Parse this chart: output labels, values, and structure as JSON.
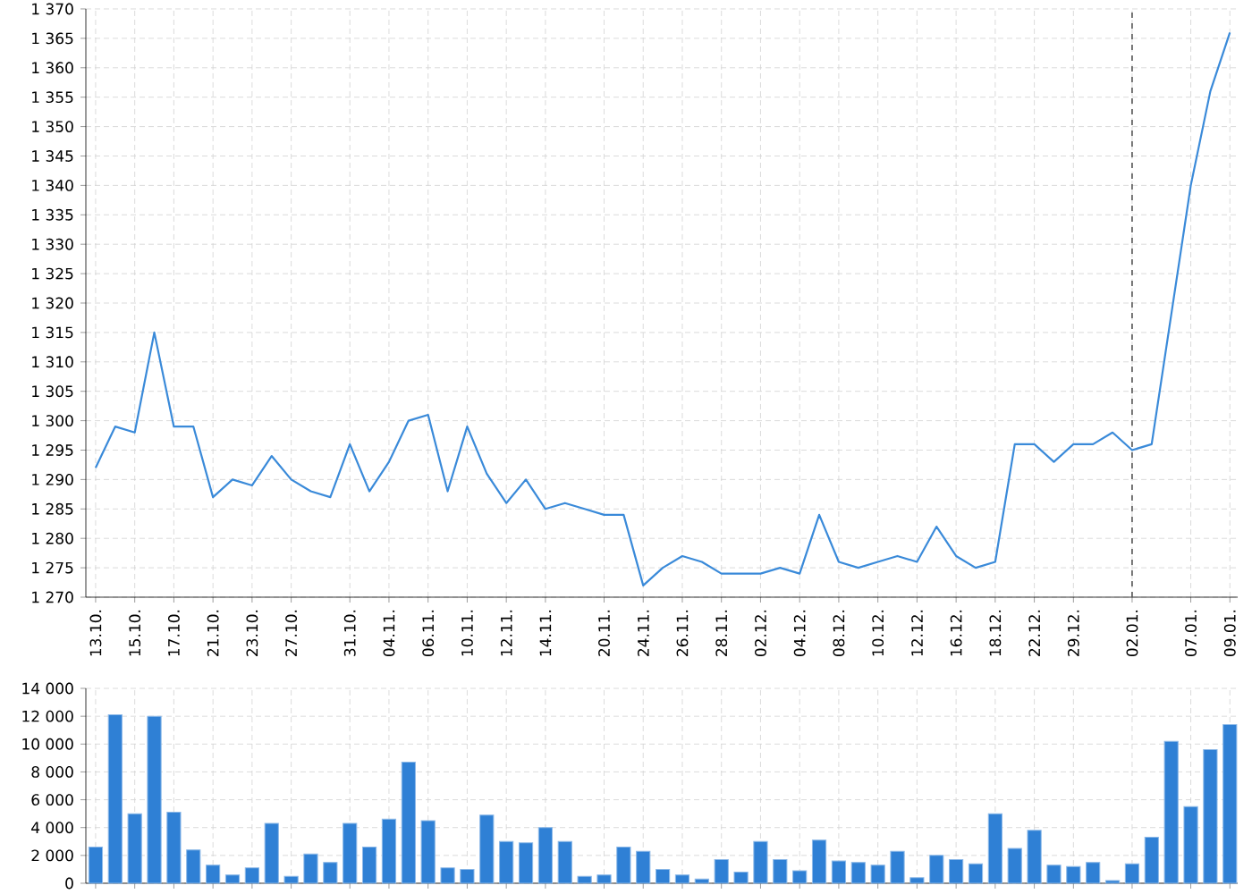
{
  "chart_data": [
    {
      "type": "line",
      "color": "#3a8ad9",
      "grid": true,
      "categories": [
        "13.10.",
        null,
        "15.10.",
        null,
        "17.10.",
        null,
        "21.10.",
        null,
        "23.10.",
        null,
        "27.10.",
        null,
        null,
        "31.10.",
        null,
        "04.11.",
        null,
        "06.11.",
        null,
        "10.11.",
        null,
        "12.11.",
        null,
        "14.11.",
        null,
        null,
        "20.11.",
        null,
        "24.11.",
        null,
        "26.11.",
        null,
        "28.11.",
        null,
        "02.12.",
        null,
        "04.12.",
        null,
        "08.12.",
        null,
        "10.12.",
        null,
        "12.12.",
        null,
        "16.12.",
        null,
        "18.12.",
        null,
        "22.12.",
        null,
        "29.12.",
        null,
        null,
        "02.01.",
        null,
        null,
        "07.01.",
        null,
        "09.01."
      ],
      "values": [
        1292,
        1299,
        1298,
        1315,
        1299,
        1299,
        1287,
        1290,
        1289,
        1294,
        1290,
        1288,
        1287,
        1296,
        1288,
        1293,
        1300,
        1301,
        1288,
        1299,
        1291,
        1286,
        1290,
        1285,
        1286,
        1285,
        1284,
        1284,
        1272,
        1275,
        1277,
        1276,
        1274,
        1274,
        1274,
        1275,
        1274,
        1284,
        1276,
        1275,
        1276,
        1277,
        1276,
        1282,
        1277,
        1275,
        1276,
        1296,
        1296,
        1293,
        1296,
        1296,
        1298,
        1295,
        1296,
        1318,
        1340,
        1356,
        1366
      ],
      "ylim": [
        1270,
        1370
      ],
      "yticks": [
        {
          "value": 1270,
          "label": "1 270"
        },
        {
          "value": 1275,
          "label": "1 275"
        },
        {
          "value": 1280,
          "label": "1 280"
        },
        {
          "value": 1285,
          "label": "1 285"
        },
        {
          "value": 1290,
          "label": "1 290"
        },
        {
          "value": 1295,
          "label": "1 295"
        },
        {
          "value": 1300,
          "label": "1 300"
        },
        {
          "value": 1305,
          "label": "1 305"
        },
        {
          "value": 1310,
          "label": "1 310"
        },
        {
          "value": 1315,
          "label": "1 315"
        },
        {
          "value": 1320,
          "label": "1 320"
        },
        {
          "value": 1325,
          "label": "1 325"
        },
        {
          "value": 1330,
          "label": "1 330"
        },
        {
          "value": 1335,
          "label": "1 335"
        },
        {
          "value": 1340,
          "label": "1 340"
        },
        {
          "value": 1345,
          "label": "1 345"
        },
        {
          "value": 1350,
          "label": "1 350"
        },
        {
          "value": 1355,
          "label": "1 355"
        },
        {
          "value": 1360,
          "label": "1 360"
        },
        {
          "value": 1365,
          "label": "1 365"
        },
        {
          "value": 1370,
          "label": "1 370"
        }
      ],
      "ref_lines": [
        {
          "axis": "x",
          "value": "02.01.",
          "color": "#555555",
          "line_style": "dashed"
        }
      ]
    },
    {
      "type": "bar",
      "color": "#2f80d5",
      "grid": true,
      "tick_labels": "y",
      "categories": [
        "13.10.",
        null,
        "15.10.",
        null,
        "17.10.",
        null,
        "21.10.",
        null,
        "23.10.",
        null,
        "27.10.",
        null,
        null,
        "31.10.",
        null,
        "04.11.",
        null,
        "06.11.",
        null,
        "10.11.",
        null,
        "12.11.",
        null,
        "14.11.",
        null,
        null,
        "20.11.",
        null,
        "24.11.",
        null,
        "26.11.",
        null,
        "28.11.",
        null,
        "02.12.",
        null,
        "04.12.",
        null,
        "08.12.",
        null,
        "10.12.",
        null,
        "12.12.",
        null,
        "16.12.",
        null,
        "18.12.",
        null,
        "22.12.",
        null,
        "29.12.",
        null,
        null,
        "02.01.",
        null,
        null,
        "07.01.",
        null,
        "09.01."
      ],
      "values": [
        2600,
        12100,
        5000,
        12000,
        5100,
        2400,
        1300,
        600,
        1100,
        4300,
        500,
        2100,
        1500,
        4300,
        2600,
        4600,
        8700,
        4500,
        1100,
        1000,
        4900,
        3000,
        2900,
        4000,
        3000,
        500,
        600,
        2600,
        2300,
        1000,
        600,
        300,
        1700,
        800,
        3000,
        1700,
        900,
        3100,
        1600,
        1500,
        1300,
        2300,
        400,
        2000,
        1700,
        1400,
        5000,
        2500,
        3800,
        1300,
        1200,
        1500,
        200,
        1400,
        3300,
        10200,
        5500,
        9600,
        11400
      ],
      "ylim": [
        0,
        14000
      ],
      "yticks": [
        0,
        {
          "value": 2000,
          "label": "2 000"
        },
        {
          "value": 4000,
          "label": "4 000"
        },
        {
          "value": 6000,
          "label": "6 000"
        },
        {
          "value": 8000,
          "label": "8 000"
        },
        {
          "value": 10000,
          "label": "10 000"
        },
        {
          "value": 12000,
          "label": "12 000"
        },
        {
          "value": 14000,
          "label": "14 000"
        }
      ]
    }
  ]
}
